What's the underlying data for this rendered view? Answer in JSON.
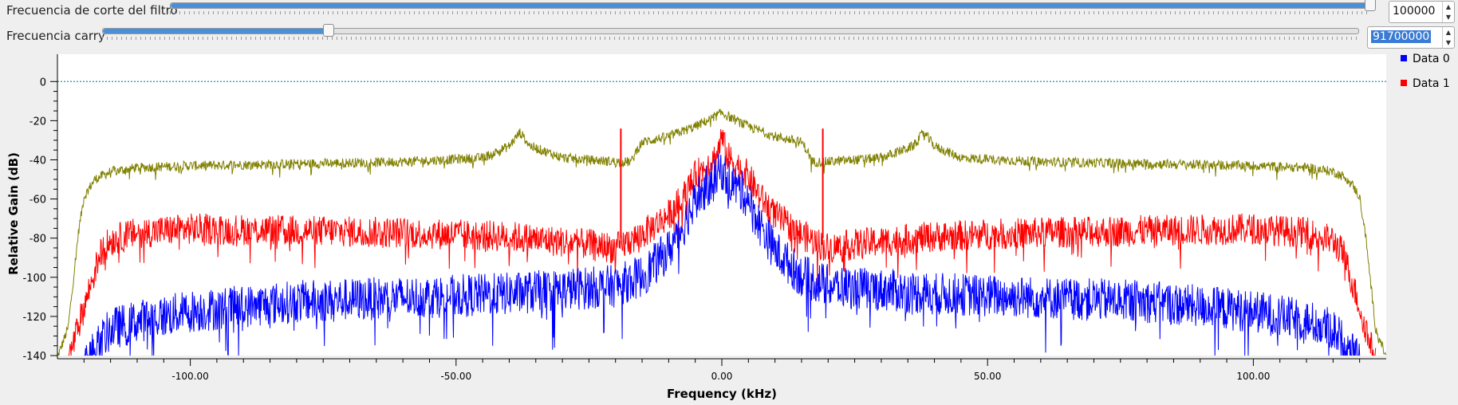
{
  "controls": {
    "cutoff": {
      "label": "Frecuencia de corte del filtro",
      "value": "100000",
      "slider_fraction": 0.999
    },
    "carry": {
      "label": "Frecuencia carry",
      "value": "91700000",
      "slider_fraction": 0.18
    }
  },
  "chart_data": {
    "type": "line",
    "xlabel": "Frequency (kHz)",
    "ylabel": "Relative Gain (dB)",
    "xlim": [
      -125,
      125
    ],
    "ylim": [
      -140,
      5
    ],
    "xticks": [
      -100,
      -50,
      0,
      50,
      100
    ],
    "xtick_labels": [
      "-100.00",
      "-50.00",
      "0.00",
      "50.00",
      "100.00"
    ],
    "yticks": [
      0,
      -20,
      -40,
      -60,
      -80,
      -100,
      -120,
      -140
    ],
    "ytick_labels": [
      "0",
      "-20",
      "-40",
      "-60",
      "-80",
      "-100",
      "-120",
      "-140"
    ],
    "reference_line": {
      "y": 0,
      "color": "#2a8aa8",
      "style": "dotted"
    },
    "legend": {
      "placement": "right",
      "items": [
        {
          "name": "Data 0",
          "color": "#0000ff"
        },
        {
          "name": "Data 1",
          "color": "#ff0000"
        }
      ]
    },
    "series": [
      {
        "color": "#808000",
        "x": [
          -125,
          -123,
          -121,
          -120,
          -118,
          -115,
          -110,
          -100,
          -80,
          -60,
          -45,
          -40,
          -38,
          -36,
          -30,
          -20,
          -17,
          -16,
          -15,
          -10,
          -5,
          -2,
          0,
          2,
          5,
          10,
          15,
          16,
          17,
          20,
          30,
          36,
          38,
          40,
          45,
          60,
          80,
          100,
          110,
          115,
          118,
          120,
          121,
          123,
          125
        ],
        "values": [
          -140,
          -125,
          -75,
          -58,
          -49,
          -45,
          -43,
          -42,
          -41,
          -40,
          -38,
          -32,
          -25,
          -32,
          -38,
          -40,
          -40,
          -34,
          -30,
          -27,
          -22,
          -18,
          -15,
          -18,
          -22,
          -27,
          -30,
          -34,
          -40,
          -40,
          -38,
          -32,
          -25,
          -32,
          -38,
          -40,
          -41,
          -42,
          -43,
          -45,
          -49,
          -58,
          -75,
          -125,
          -140
        ]
      },
      {
        "name": "Data 1",
        "color": "#ff0000",
        "x": [
          -123,
          -120,
          -117,
          -115,
          -110,
          -100,
          -80,
          -60,
          -40,
          -25,
          -20,
          -15,
          -10,
          -7,
          -5,
          -3,
          -1,
          0,
          1,
          3,
          5,
          7,
          10,
          15,
          20,
          25,
          40,
          60,
          80,
          100,
          110,
          115,
          117,
          120,
          123
        ],
        "values": [
          -140,
          -112,
          -85,
          -78,
          -74,
          -72,
          -73,
          -74,
          -76,
          -80,
          -82,
          -75,
          -65,
          -55,
          -45,
          -40,
          -35,
          -25,
          -35,
          -40,
          -45,
          -55,
          -65,
          -75,
          -82,
          -80,
          -76,
          -74,
          -73,
          -72,
          -74,
          -78,
          -85,
          -112,
          -140
        ],
        "spikes": [
          {
            "x": -19,
            "value": -24
          },
          {
            "x": 19,
            "value": -24
          }
        ]
      },
      {
        "name": "Data 0",
        "color": "#0000ff",
        "x": [
          -120,
          -115,
          -110,
          -100,
          -80,
          -60,
          -40,
          -20,
          -15,
          -10,
          -7,
          -5,
          -3,
          -1,
          0,
          1,
          3,
          5,
          7,
          10,
          15,
          20,
          40,
          60,
          80,
          100,
          110,
          115,
          120
        ],
        "values": [
          -140,
          -122,
          -118,
          -113,
          -108,
          -106,
          -104,
          -100,
          -95,
          -82,
          -68,
          -55,
          -50,
          -45,
          -40,
          -45,
          -50,
          -55,
          -68,
          -82,
          -95,
          -100,
          -104,
          -106,
          -108,
          -113,
          -118,
          -122,
          -140
        ]
      }
    ]
  }
}
